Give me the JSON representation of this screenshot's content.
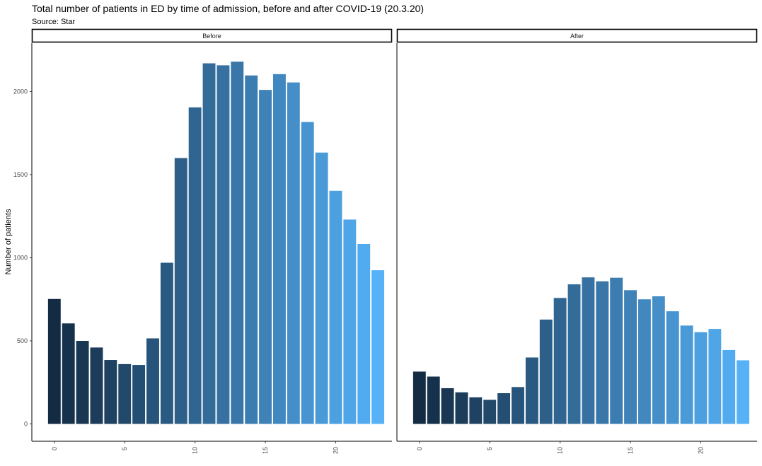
{
  "chart_data": {
    "type": "bar",
    "title": "Total number of patients in ED by time of admission, before and after COVID-19 (20.3.20)",
    "subtitle": "Source: Star",
    "xlabel": "",
    "ylabel": "Number of patients",
    "x": [
      0,
      1,
      2,
      3,
      4,
      5,
      6,
      7,
      8,
      9,
      10,
      11,
      12,
      13,
      14,
      15,
      16,
      17,
      18,
      19,
      20,
      21,
      22,
      23
    ],
    "xticks": [
      "0",
      "5",
      "10",
      "15",
      "20"
    ],
    "yticks": [
      "0",
      "500",
      "1000",
      "1500",
      "2000"
    ],
    "ylim": [
      0,
      2280
    ],
    "xlim": [
      -1.6,
      24.0
    ],
    "color_low": "#132B43",
    "color_high": "#56B1F7",
    "grid": false,
    "legend": "none",
    "facets": [
      {
        "name": "Before",
        "values": [
          752,
          605,
          500,
          460,
          385,
          360,
          355,
          515,
          970,
          1600,
          1905,
          2170,
          2158,
          2180,
          2097,
          2010,
          2105,
          2055,
          1817,
          1633,
          1403,
          1230,
          1083,
          925
        ]
      },
      {
        "name": "After",
        "values": [
          315,
          285,
          215,
          190,
          160,
          145,
          185,
          222,
          400,
          628,
          758,
          840,
          882,
          858,
          880,
          805,
          750,
          768,
          678,
          592,
          552,
          572,
          445,
          383
        ]
      }
    ]
  }
}
